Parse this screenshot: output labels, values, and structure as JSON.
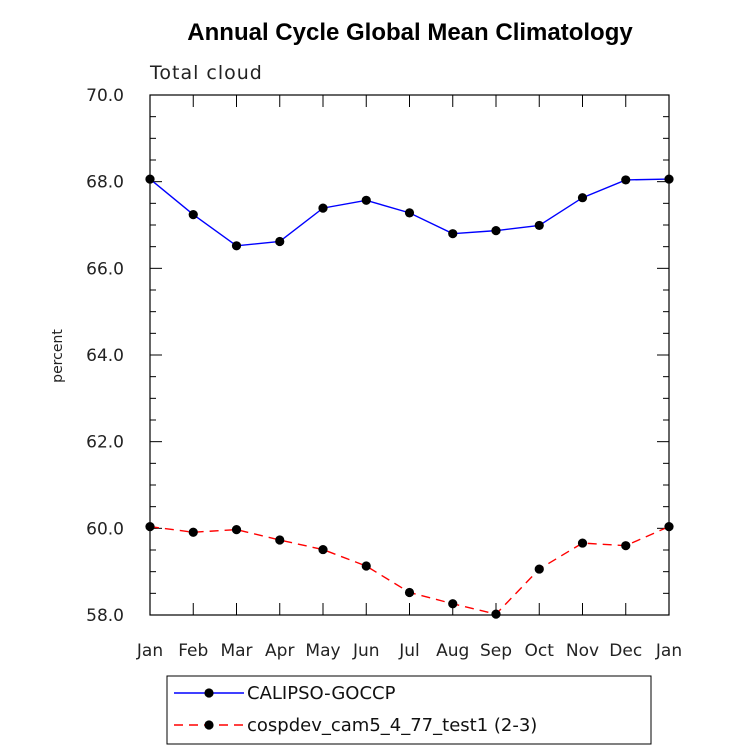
{
  "chart_data": {
    "type": "line",
    "title": "Annual Cycle Global Mean Climatology",
    "subtitle": "Total cloud",
    "ylabel": "percent",
    "xlabel": "",
    "ylim": [
      58.0,
      70.0
    ],
    "yticks": [
      "58.0",
      "60.0",
      "62.0",
      "64.0",
      "66.0",
      "68.0",
      "70.0"
    ],
    "categories": [
      "Jan",
      "Feb",
      "Mar",
      "Apr",
      "May",
      "Jun",
      "Jul",
      "Aug",
      "Sep",
      "Oct",
      "Nov",
      "Dec",
      "Jan"
    ],
    "series": [
      {
        "name": "CALIPSO-GOCCP",
        "color": "#0000ff",
        "dash": "solid",
        "marker": "circle",
        "values": [
          68.06,
          67.24,
          66.52,
          66.62,
          67.39,
          67.57,
          67.28,
          66.8,
          66.87,
          66.99,
          67.63,
          68.04,
          68.06
        ]
      },
      {
        "name": "cospdev_cam5_4_77_test1 (2-3)",
        "color": "#ff0000",
        "dash": "dashed",
        "marker": "circle",
        "values": [
          60.04,
          59.91,
          59.97,
          59.73,
          59.51,
          59.13,
          58.52,
          58.26,
          58.02,
          59.06,
          59.66,
          59.6,
          60.04
        ]
      }
    ],
    "grid": false,
    "legend_position": "bottom"
  }
}
